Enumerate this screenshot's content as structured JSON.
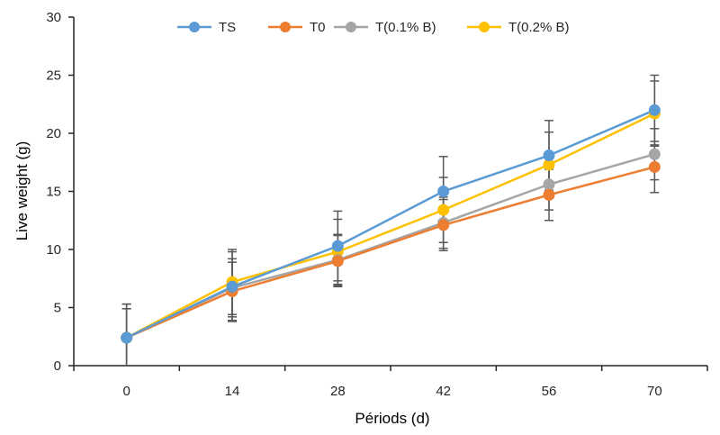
{
  "chart_data": {
    "type": "line",
    "xlabel": "Périods (d)",
    "ylabel": "Live weight (g)",
    "categories": [
      "0",
      "14",
      "28",
      "42",
      "56",
      "70"
    ],
    "ylim": [
      0,
      30
    ],
    "yticks": [
      0,
      5,
      10,
      15,
      20,
      25,
      30
    ],
    "legend_position": "top",
    "grid": false,
    "series": [
      {
        "name": "TS",
        "color": "#5B9BD5",
        "values": [
          2.4,
          6.8,
          10.3,
          15.0,
          18.1,
          22.0
        ],
        "errors": [
          2.9,
          3.0,
          3.0,
          3.0,
          3.0,
          3.0
        ]
      },
      {
        "name": "T0",
        "color": "#ED7D31",
        "values": [
          2.4,
          6.4,
          9.0,
          12.1,
          14.7,
          17.1
        ],
        "errors": [
          2.5,
          2.5,
          2.2,
          2.2,
          2.2,
          2.2
        ]
      },
      {
        "name": "T(0.1% B)",
        "color": "#A5A5A5",
        "values": [
          2.4,
          6.7,
          9.1,
          12.3,
          15.6,
          18.2
        ],
        "errors": [
          2.5,
          2.5,
          2.2,
          2.2,
          2.2,
          2.2
        ]
      },
      {
        "name": "T(0.2% B)",
        "color": "#FFC000",
        "values": [
          2.4,
          7.2,
          9.8,
          13.4,
          17.3,
          21.7
        ],
        "errors": [
          2.9,
          2.8,
          2.8,
          2.8,
          2.8,
          2.8
        ]
      }
    ],
    "error_bar_color": "#595959",
    "axis_color": "#262626"
  }
}
